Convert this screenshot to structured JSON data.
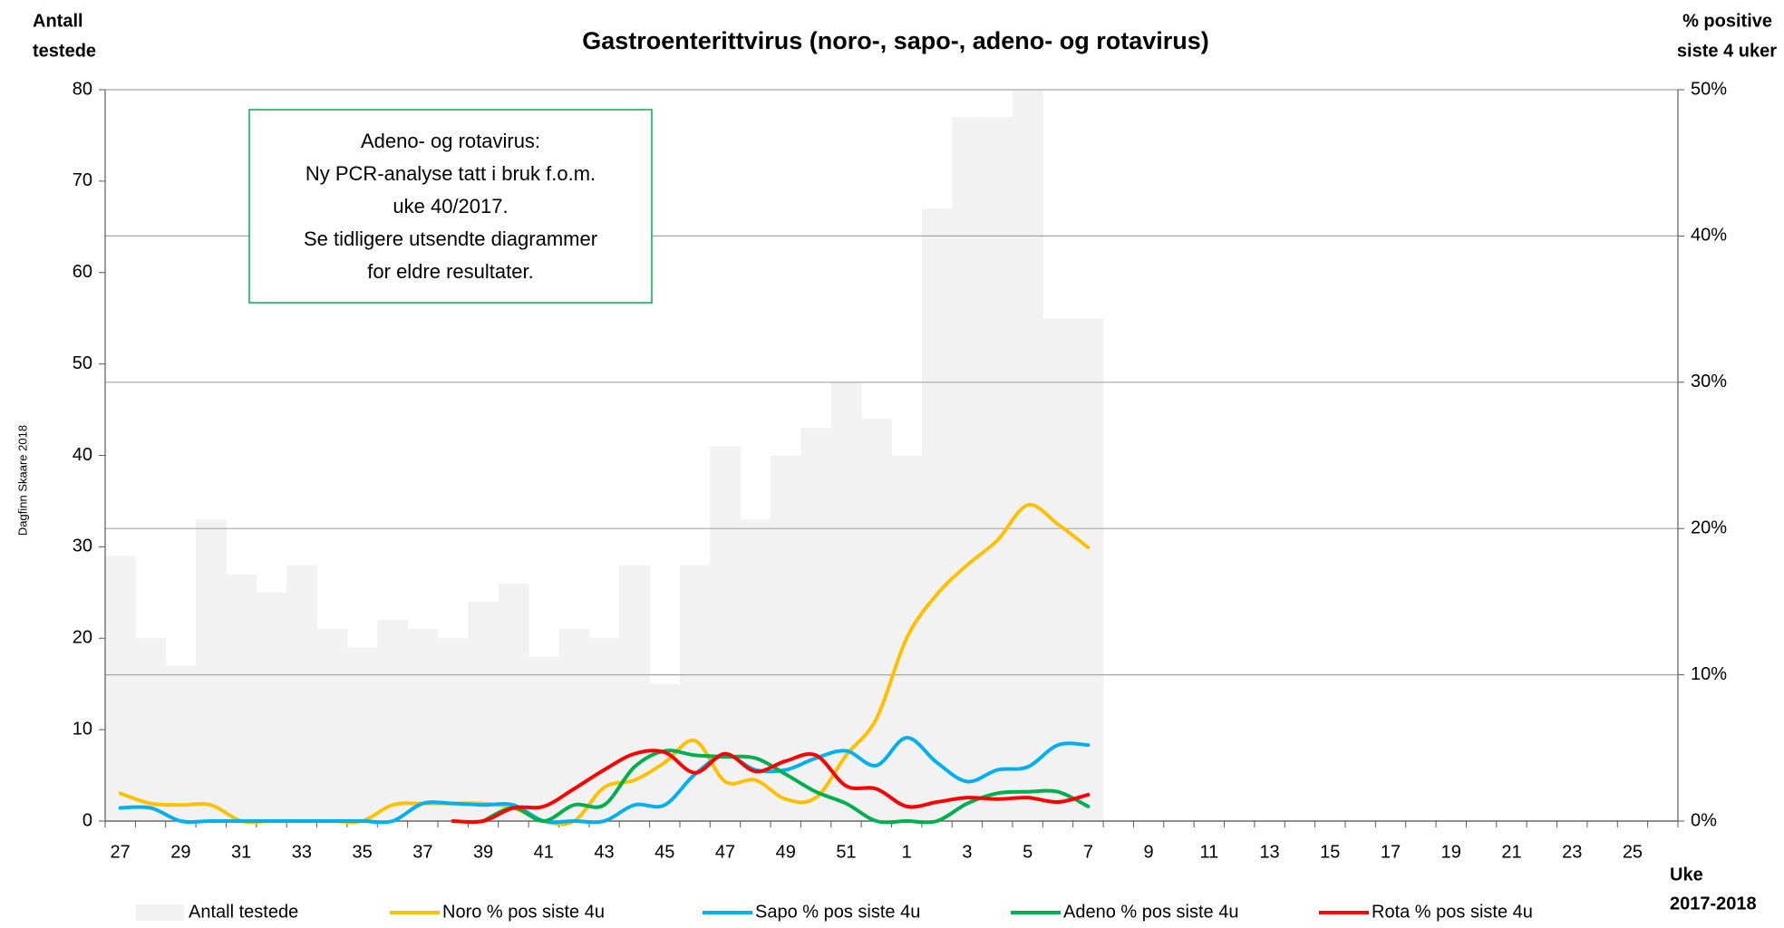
{
  "chart_data": {
    "type": "bar_line",
    "title": "Gastroenterittvirus (noro-, sapo-, adeno- og rotavirus)",
    "y_label": [
      "Antall",
      "testede"
    ],
    "y2_label": [
      "% positive",
      "siste 4 uker"
    ],
    "x_label": [
      "Uke",
      "2017-2018"
    ],
    "credit": "Dagfinn Skaare 2018",
    "annotation": [
      "Adeno- og rotavirus:",
      "Ny PCR-analyse tatt i bruk f.o.m.",
      "uke 40/2017.",
      "Se tidligere utsendte diagrammer",
      "for eldre resultater."
    ],
    "categories": [
      "27",
      null,
      "29",
      null,
      "31",
      null,
      "33",
      null,
      "35",
      null,
      "37",
      null,
      "39",
      null,
      "41",
      null,
      "43",
      null,
      "45",
      null,
      "47",
      null,
      "49",
      null,
      "51",
      null,
      "1",
      null,
      "3",
      null,
      "5",
      null,
      "7",
      null,
      "9",
      null,
      "11",
      null,
      "13",
      null,
      "15",
      null,
      "17",
      null,
      "19",
      null,
      "21",
      null,
      "23",
      null,
      "25",
      null
    ],
    "series": [
      {
        "name": "Antall testede",
        "color": "#f2f2f2",
        "kind": "bar",
        "values": [
          29,
          20,
          17,
          33,
          27,
          25,
          28,
          21,
          19,
          22,
          21,
          20,
          24,
          26,
          18,
          21,
          20,
          28,
          15,
          28,
          41,
          33,
          40,
          43,
          48,
          44,
          40,
          67,
          77,
          77,
          80,
          55,
          55,
          null,
          null,
          null,
          null,
          null,
          null,
          null,
          null,
          null,
          null,
          null,
          null,
          null,
          null,
          null,
          null,
          null,
          null,
          null
        ]
      },
      {
        "name": "Noro % pos siste 4u",
        "color": "#ffc000",
        "kind": "line",
        "axis": "y2",
        "values": [
          1.9,
          1.2,
          1.1,
          1.1,
          0,
          0,
          0,
          0,
          0,
          1.1,
          1.2,
          1.2,
          1.2,
          0.9,
          0,
          0,
          2.3,
          2.8,
          4.0,
          5.5,
          2.7,
          2.8,
          1.5,
          1.6,
          4.5,
          7.0,
          12.5,
          15.5,
          17.5,
          19.2,
          21.6,
          20.3,
          18.7,
          null,
          null,
          null,
          null,
          null,
          null,
          null,
          null,
          null,
          null,
          null,
          null,
          null,
          null,
          null,
          null,
          null,
          null,
          null
        ]
      },
      {
        "name": "Sapo % pos siste 4u",
        "color": "#00b0f0",
        "kind": "line",
        "axis": "y2",
        "values": [
          0.9,
          0.9,
          0,
          0,
          0,
          0,
          0,
          0,
          0,
          0,
          1.2,
          1.2,
          1.1,
          1.1,
          0,
          0,
          0,
          1.1,
          1.1,
          3.2,
          4.5,
          3.5,
          3.5,
          4.3,
          4.8,
          3.8,
          5.7,
          4.0,
          2.7,
          3.5,
          3.7,
          5.2,
          5.2,
          null,
          null,
          null,
          null,
          null,
          null,
          null,
          null,
          null,
          null,
          null,
          null,
          null,
          null,
          null,
          null,
          null,
          null,
          null
        ]
      },
      {
        "name": "Adeno % pos siste 4u",
        "color": "#00b050",
        "kind": "line",
        "axis": "y2",
        "values": [
          null,
          null,
          null,
          null,
          null,
          null,
          null,
          null,
          null,
          null,
          null,
          null,
          0,
          0.9,
          0,
          1.1,
          1.1,
          3.7,
          4.8,
          4.5,
          4.4,
          4.3,
          3.2,
          2.0,
          1.2,
          0,
          0,
          0,
          1.2,
          1.9,
          2.0,
          2.0,
          1.0,
          null,
          null,
          null,
          null,
          null,
          null,
          null,
          null,
          null,
          null,
          null,
          null,
          null,
          null,
          null,
          null,
          null,
          null,
          null
        ]
      },
      {
        "name": "Rota % pos siste 4u",
        "color": "#ff0000",
        "kind": "line",
        "axis": "y2",
        "values": [
          null,
          null,
          null,
          null,
          null,
          null,
          null,
          null,
          null,
          null,
          null,
          0,
          0,
          0.9,
          1.0,
          2.2,
          3.5,
          4.6,
          4.7,
          3.3,
          4.6,
          3.4,
          4.1,
          4.5,
          2.4,
          2.2,
          1.0,
          1.3,
          1.6,
          1.5,
          1.6,
          1.3,
          1.8,
          null,
          null,
          null,
          null,
          null,
          null,
          null,
          null,
          null,
          null,
          null,
          null,
          null,
          null,
          null,
          null,
          null,
          null,
          null
        ]
      }
    ],
    "ylim": [
      0,
      80
    ],
    "yticks": [
      0,
      10,
      20,
      30,
      40,
      50,
      60,
      70,
      80
    ],
    "y2lim": [
      0,
      50
    ],
    "y2ticks": [
      {
        "value": 0,
        "label": "0%"
      },
      {
        "value": 10,
        "label": "10%"
      },
      {
        "value": 20,
        "label": "20%"
      },
      {
        "value": 30,
        "label": "30%"
      },
      {
        "value": 40,
        "label": "40%"
      },
      {
        "value": 50,
        "label": "50%"
      }
    ],
    "grid": true,
    "legend": "bottom"
  }
}
